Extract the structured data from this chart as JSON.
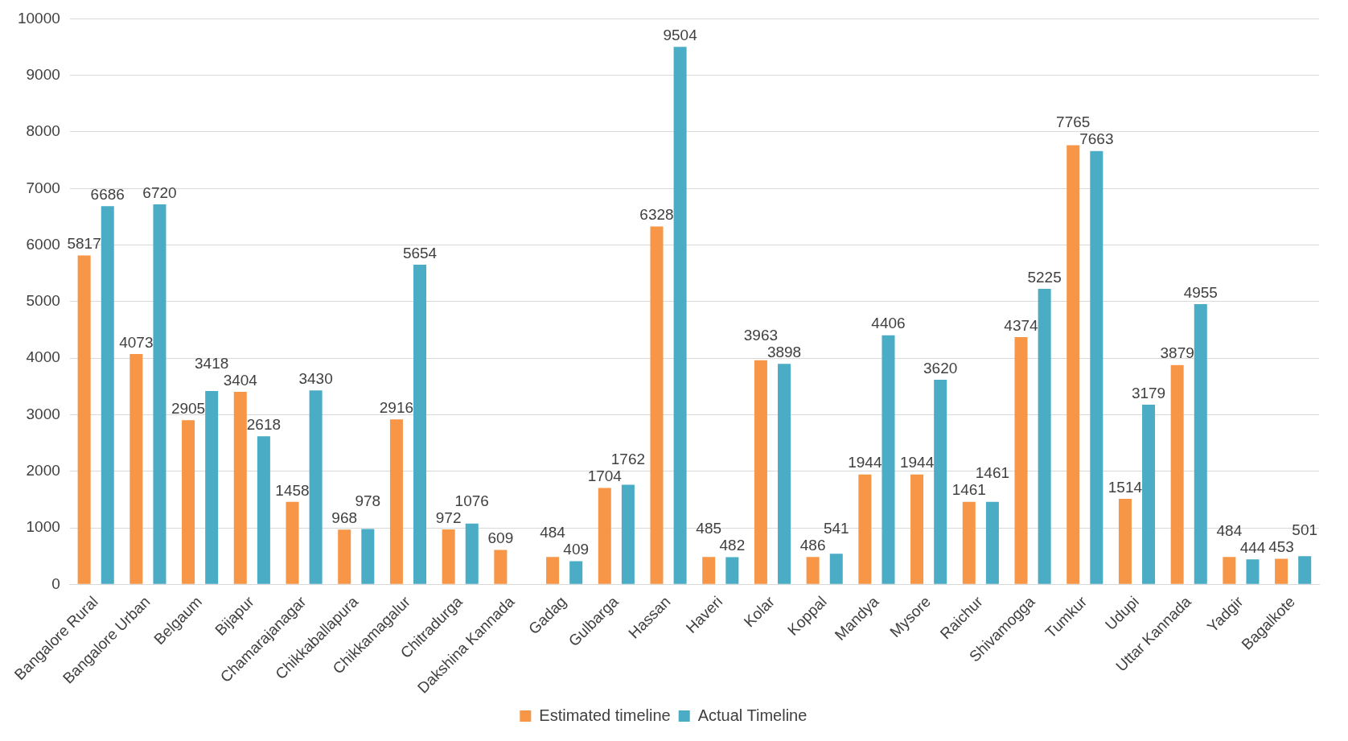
{
  "chart_data": {
    "type": "bar",
    "categories": [
      "Bangalore Rural",
      "Bangalore Urban",
      "Belgaum",
      "Bijapur",
      "Chamarajanagar",
      "Chikkaballapura",
      "Chikkamagalur",
      "Chitradurga",
      "Dakshina Kannada",
      "Gadag",
      "Gulbarga",
      "Hassan",
      "Haveri",
      "Kolar",
      "Koppal",
      "Mandya",
      "Mysore",
      "Raichur",
      "Shivamogga",
      "Tumkur",
      "Udupi",
      "Uttar Kannada",
      "Yadgir",
      "Bagalkote"
    ],
    "series": [
      {
        "name": "Estimated timeline",
        "color": "#f79646",
        "values": [
          5817,
          4073,
          2905,
          3404,
          1458,
          968,
          2916,
          972,
          609,
          484,
          1704,
          6328,
          485,
          3963,
          486,
          1944,
          1944,
          1461,
          4374,
          7765,
          1514,
          3879,
          484,
          453
        ]
      },
      {
        "name": "Actual Timeline",
        "color": "#4bacc6",
        "values": [
          6686,
          6720,
          3418,
          2618,
          3430,
          978,
          5654,
          1076,
          null,
          409,
          1762,
          9504,
          482,
          3898,
          541,
          4406,
          3620,
          1461,
          5225,
          7663,
          3179,
          4955,
          444,
          501
        ]
      }
    ],
    "ylim": [
      0,
      10000
    ],
    "yticks": [
      0,
      1000,
      2000,
      3000,
      4000,
      5000,
      6000,
      7000,
      8000,
      9000,
      10000
    ],
    "grid": "y",
    "legend": "bottom",
    "data_labels": true
  }
}
